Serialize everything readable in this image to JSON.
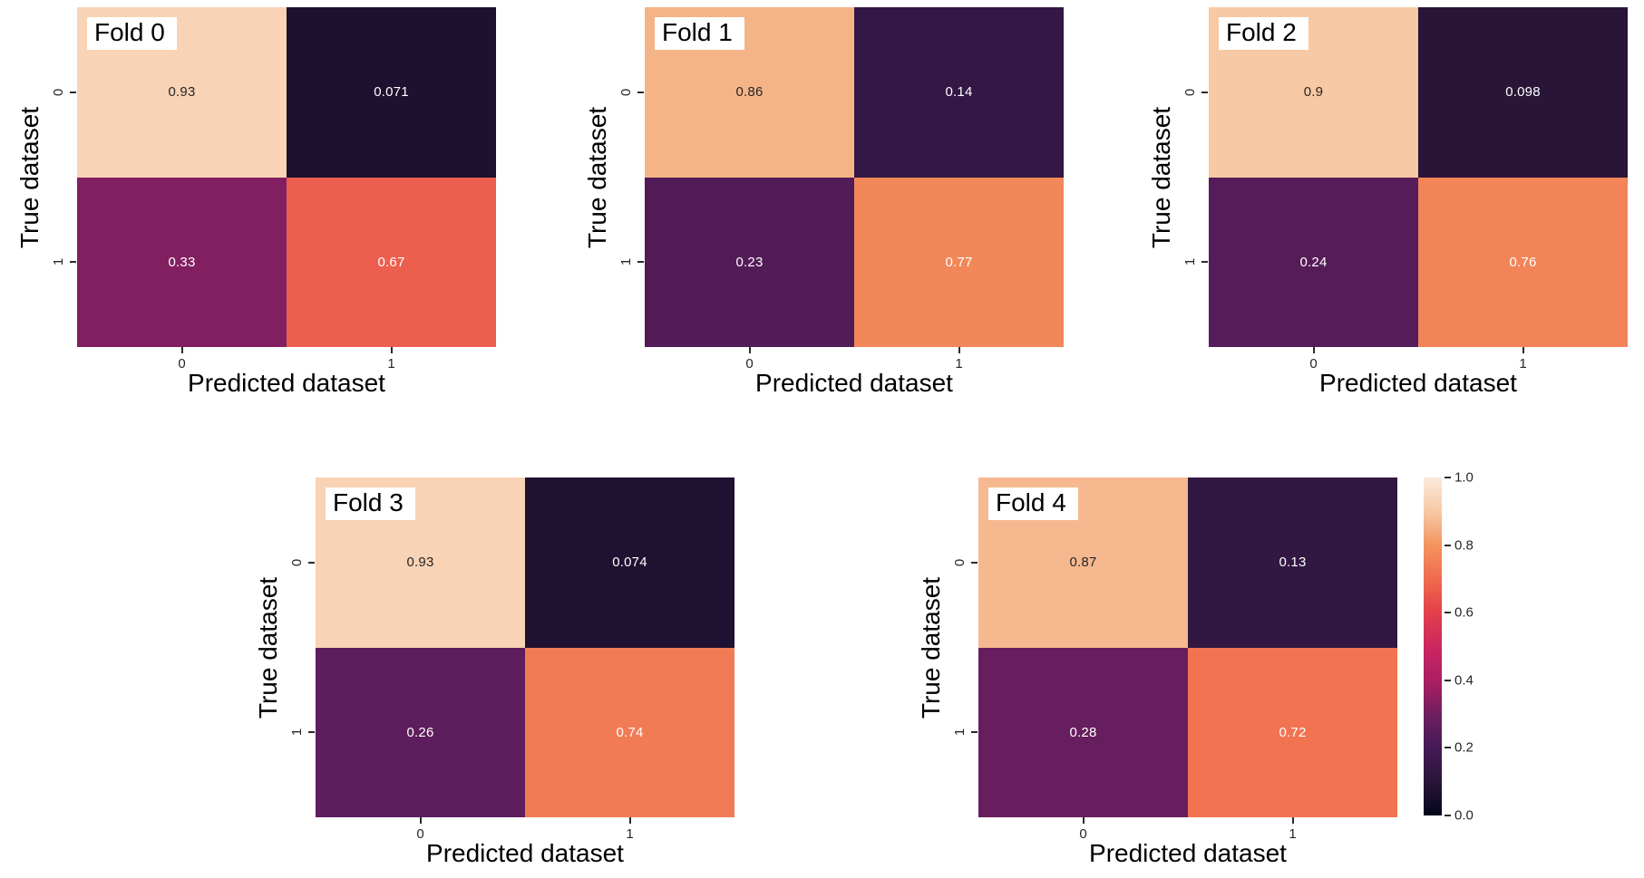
{
  "chart_data": {
    "type": "heatmap",
    "description": "Cross-validation confusion matrices, folds 0-4, normalized values 0-1",
    "xlabel": "Predicted dataset",
    "ylabel": "True dataset",
    "x_tick_labels": [
      "0",
      "1"
    ],
    "y_tick_labels": [
      "0",
      "1"
    ],
    "vmin": 0.0,
    "vmax": 1.0,
    "grid": "off",
    "subplots": [
      {
        "title": "Fold 0",
        "values": [
          [
            0.93,
            0.071
          ],
          [
            0.33,
            0.67
          ]
        ],
        "labels": [
          [
            "0.93",
            "0.071"
          ],
          [
            "0.33",
            "0.67"
          ]
        ]
      },
      {
        "title": "Fold 1",
        "values": [
          [
            0.86,
            0.14
          ],
          [
            0.23,
            0.77
          ]
        ],
        "labels": [
          [
            "0.86",
            "0.14"
          ],
          [
            "0.23",
            "0.77"
          ]
        ]
      },
      {
        "title": "Fold 2",
        "values": [
          [
            0.9,
            0.098
          ],
          [
            0.24,
            0.76
          ]
        ],
        "labels": [
          [
            "0.9",
            "0.098"
          ],
          [
            "0.24",
            "0.76"
          ]
        ]
      },
      {
        "title": "Fold 3",
        "values": [
          [
            0.93,
            0.074
          ],
          [
            0.26,
            0.74
          ]
        ],
        "labels": [
          [
            "0.93",
            "0.074"
          ],
          [
            "0.26",
            "0.74"
          ]
        ]
      },
      {
        "title": "Fold 4",
        "values": [
          [
            0.87,
            0.13
          ],
          [
            0.28,
            0.72
          ]
        ],
        "labels": [
          [
            "0.87",
            "0.13"
          ],
          [
            "0.28",
            "0.72"
          ]
        ]
      }
    ],
    "colorbar": {
      "position": "right-of-fold-4",
      "tick_labels": [
        "1.0",
        "0.8",
        "0.6",
        "0.4",
        "0.2",
        "0.0"
      ],
      "tick_values": [
        1.0,
        0.8,
        0.6,
        0.4,
        0.2,
        0.0
      ]
    },
    "colormap": {
      "name": "rocket",
      "stops": [
        {
          "v": 0.0,
          "c": "#03051C"
        },
        {
          "v": 0.1,
          "c": "#291538"
        },
        {
          "v": 0.2,
          "c": "#451A55"
        },
        {
          "v": 0.3,
          "c": "#6F1F60"
        },
        {
          "v": 0.4,
          "c": "#AD1F63"
        },
        {
          "v": 0.5,
          "c": "#CB2760"
        },
        {
          "v": 0.6,
          "c": "#E2404A"
        },
        {
          "v": 0.7,
          "c": "#F06B4E"
        },
        {
          "v": 0.8,
          "c": "#F3945F"
        },
        {
          "v": 0.9,
          "c": "#F7C9A4"
        },
        {
          "v": 1.0,
          "c": "#FBEADC"
        }
      ]
    },
    "annotation_colors": {
      "on_light": "#262626",
      "on_dark": "#ffffff"
    },
    "style_colors": {
      "background": "#ffffff",
      "tick_mark": "#2b2b2b",
      "tick_label": "#262626",
      "axis_label": "#000000",
      "fold_label_bg": "#ffffff",
      "fold_label_text": "#000000"
    }
  }
}
